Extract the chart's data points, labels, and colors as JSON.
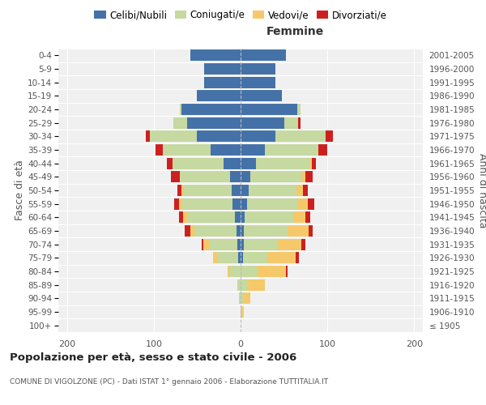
{
  "age_groups": [
    "100+",
    "95-99",
    "90-94",
    "85-89",
    "80-84",
    "75-79",
    "70-74",
    "65-69",
    "60-64",
    "55-59",
    "50-54",
    "45-49",
    "40-44",
    "35-39",
    "30-34",
    "25-29",
    "20-24",
    "15-19",
    "10-14",
    "5-9",
    "0-4"
  ],
  "birth_years": [
    "≤ 1905",
    "1906-1910",
    "1911-1915",
    "1916-1920",
    "1921-1925",
    "1926-1930",
    "1931-1935",
    "1936-1940",
    "1941-1945",
    "1946-1950",
    "1951-1955",
    "1956-1960",
    "1961-1965",
    "1966-1970",
    "1971-1975",
    "1976-1980",
    "1981-1985",
    "1986-1990",
    "1991-1995",
    "1996-2000",
    "2001-2005"
  ],
  "male_celibi": [
    0,
    0,
    0,
    0,
    0,
    3,
    4,
    5,
    7,
    9,
    10,
    12,
    20,
    35,
    50,
    62,
    68,
    50,
    42,
    42,
    58
  ],
  "male_coniugati": [
    0,
    0,
    2,
    4,
    12,
    24,
    32,
    48,
    55,
    58,
    55,
    58,
    58,
    55,
    55,
    15,
    2,
    0,
    0,
    0,
    0
  ],
  "male_vedovi": [
    0,
    0,
    0,
    0,
    3,
    5,
    7,
    5,
    4,
    4,
    3,
    0,
    0,
    0,
    0,
    0,
    0,
    0,
    0,
    0,
    0
  ],
  "male_divorziati": [
    0,
    0,
    0,
    0,
    0,
    0,
    2,
    6,
    5,
    6,
    5,
    10,
    7,
    8,
    4,
    0,
    0,
    0,
    0,
    0,
    0
  ],
  "female_nubili": [
    0,
    0,
    0,
    0,
    0,
    3,
    4,
    4,
    5,
    7,
    9,
    11,
    18,
    28,
    40,
    50,
    65,
    48,
    40,
    40,
    52
  ],
  "female_coniugate": [
    0,
    1,
    3,
    8,
    20,
    28,
    38,
    50,
    56,
    58,
    55,
    60,
    62,
    62,
    58,
    16,
    4,
    0,
    0,
    0,
    0
  ],
  "female_vedove": [
    0,
    3,
    8,
    20,
    32,
    32,
    28,
    24,
    14,
    12,
    8,
    4,
    2,
    0,
    0,
    0,
    0,
    0,
    0,
    0,
    0
  ],
  "female_divorziate": [
    0,
    0,
    0,
    0,
    2,
    4,
    5,
    5,
    5,
    8,
    5,
    8,
    5,
    10,
    8,
    3,
    0,
    0,
    0,
    0,
    0
  ],
  "color_celibi": "#4472a8",
  "color_coniugati": "#c5d9a0",
  "color_vedovi": "#f5c96a",
  "color_divorziati": "#cc2020",
  "xlim_min": -210,
  "xlim_max": 210,
  "xticks": [
    -200,
    -100,
    0,
    100,
    200
  ],
  "xticklabels": [
    "200",
    "100",
    "0",
    "100",
    "200"
  ],
  "title": "Popolazione per età, sesso e stato civile - 2006",
  "subtitle": "COMUNE DI VIGOLZONE (PC) - Dati ISTAT 1° gennaio 2006 - Elaborazione TUTTITALIA.IT",
  "ylabel_left": "Fasce di età",
  "ylabel_right": "Anni di nascita",
  "legend_labels": [
    "Celibi/Nubili",
    "Coniugati/e",
    "Vedovi/e",
    "Divorziati/e"
  ],
  "header_femmine": "Femmine",
  "bg_color": "#f0f0f0",
  "bar_height": 0.85
}
